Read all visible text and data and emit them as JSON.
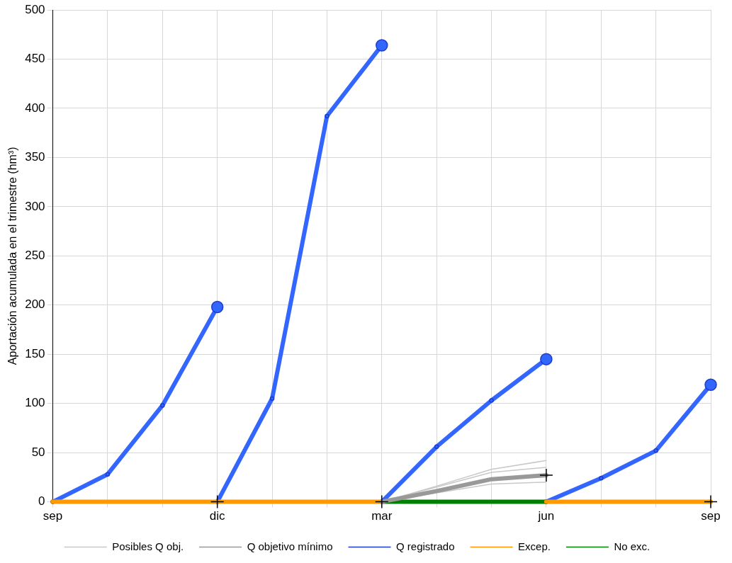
{
  "chart_data": {
    "type": "line",
    "ylabel": "Aportación acumulada en el trimestre (hm³)",
    "categories": [
      "sep",
      null,
      null,
      "dic",
      null,
      null,
      "mar",
      null,
      null,
      "jun",
      null,
      null,
      "sep"
    ],
    "ylim": [
      0,
      500
    ],
    "yticks": [
      0,
      50,
      100,
      150,
      200,
      250,
      300,
      350,
      400,
      450,
      500
    ],
    "grid": true,
    "legend": "bottom",
    "series": [
      {
        "name": "Posibles Q obj.",
        "color": "#c8c8c8",
        "marker": "none",
        "values": [
          null,
          null,
          null,
          null,
          null,
          null,
          0,
          16,
          33,
          42,
          null,
          null,
          null
        ]
      },
      {
        "color": "#c8c8c8",
        "marker": "none",
        "values": [
          null,
          null,
          null,
          null,
          null,
          null,
          0,
          15,
          30,
          35,
          null,
          null,
          null
        ]
      },
      {
        "color": "#c8c8c8",
        "marker": "none",
        "values": [
          null,
          null,
          null,
          null,
          null,
          null,
          0,
          9,
          18,
          20,
          null,
          null,
          null
        ]
      },
      {
        "name": "Q objetivo mínimo",
        "color": "#999999",
        "marker": "none",
        "values": [
          null,
          null,
          null,
          null,
          null,
          null,
          0,
          11,
          23,
          27,
          null,
          null,
          null
        ]
      },
      {
        "name": "Q registrado",
        "color": "#3366ff",
        "marker": "circle",
        "values": [
          0,
          28,
          98,
          198,
          null,
          null,
          null,
          null,
          null,
          null,
          null,
          null,
          null
        ]
      },
      {
        "color": "#3366ff",
        "marker": "circle",
        "values": [
          null,
          null,
          null,
          0,
          105,
          392,
          464,
          null,
          null,
          null,
          null,
          null,
          null
        ]
      },
      {
        "color": "#3366ff",
        "marker": "circle",
        "values": [
          null,
          null,
          null,
          null,
          null,
          null,
          0,
          56,
          103,
          145,
          null,
          null,
          null
        ]
      },
      {
        "color": "#3366ff",
        "marker": "circle",
        "values": [
          null,
          null,
          null,
          null,
          null,
          null,
          null,
          null,
          null,
          0,
          24,
          52,
          119
        ]
      },
      {
        "name": "Excep.",
        "color": "#ff9900",
        "marker": "none",
        "values": [
          0,
          0,
          0,
          0,
          0,
          0,
          0,
          null,
          null,
          0,
          0,
          0,
          0
        ]
      },
      {
        "name": "No exc.",
        "color": "#008000",
        "marker": "none",
        "values": [
          null,
          null,
          null,
          null,
          null,
          null,
          0,
          0,
          0,
          0,
          null,
          null,
          null
        ]
      },
      {
        "type": "scatter",
        "color": "#000000",
        "marker": "cross",
        "values": [
          null,
          null,
          null,
          0,
          null,
          null,
          0,
          null,
          null,
          27,
          null,
          null,
          0
        ]
      }
    ]
  }
}
